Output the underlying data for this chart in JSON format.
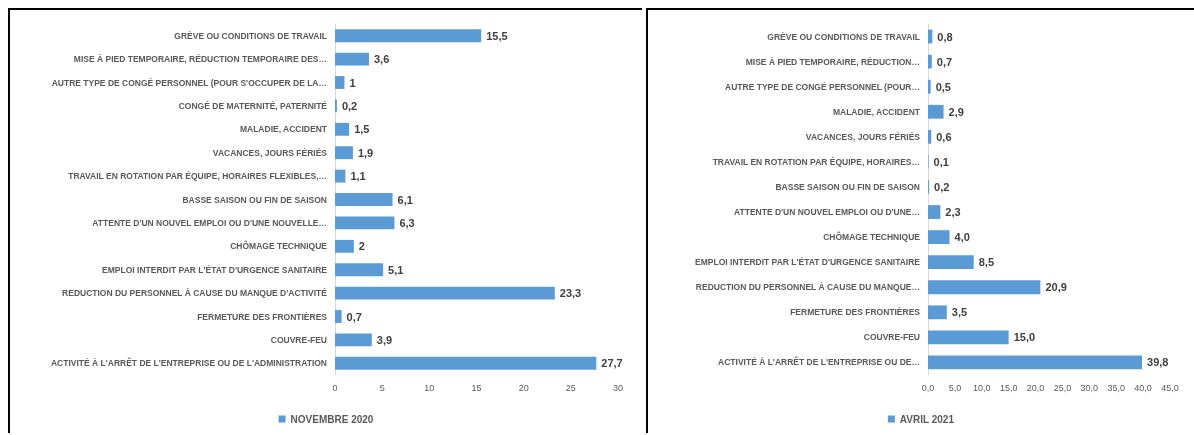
{
  "chart_data": [
    {
      "type": "bar",
      "orientation": "horizontal",
      "categories": [
        "GRÈVE OU CONDITIONS DE TRAVAIL",
        "MISE À PIED TEMPORAIRE, RÉDUCTION TEMPORAIRE DES…",
        "AUTRE TYPE DE CONGÉ PERSONNEL (POUR S'OCCUPER DE LA…",
        "CONGÉ DE MATERNITÉ, PATERNITÉ",
        "MALADIE, ACCIDENT",
        "VACANCES, JOURS FÉRIÉS",
        "TRAVAIL EN ROTATION PAR ÉQUIPE, HORAIRES FLEXIBLES,…",
        "BASSE SAISON OU FIN DE SAISON",
        "ATTENTE D'UN NOUVEL EMPLOI OU D'UNE NOUVELLE…",
        "CHÔMAGE TECHNIQUE",
        "EMPLOI INTERDIT PAR L'ÉTAT D'URGENCE SANITAIRE",
        "REDUCTION DU PERSONNEL À CAUSE DU MANQUE D'ACTIVITÉ",
        "FERMETURE DES FRONTIÈRES",
        "COUVRE-FEU",
        "ACTIVITÉ À L'ARRÊT DE L'ENTREPRISE OU DE L'ADMINISTRATION"
      ],
      "series": [
        {
          "name": "NOVEMBRE 2020",
          "color": "#5b9bd5",
          "values": [
            15.5,
            3.6,
            1,
            0.2,
            1.5,
            1.9,
            1.1,
            6.1,
            6.3,
            2,
            5.1,
            23.3,
            0.7,
            3.9,
            27.7
          ],
          "value_labels": [
            "15,5",
            "3,6",
            "1",
            "0,2",
            "1,5",
            "1,9",
            "1,1",
            "6,1",
            "6,3",
            "2",
            "5,1",
            "23,3",
            "0,7",
            "3,9",
            "27,7"
          ]
        }
      ],
      "xlim": [
        0,
        30
      ],
      "xticks": [
        0,
        5,
        10,
        15,
        20,
        25,
        30
      ],
      "legend": "bottom",
      "grid": false
    },
    {
      "type": "bar",
      "orientation": "horizontal",
      "categories": [
        "GRÈVE OU CONDITIONS DE TRAVAIL",
        "MISE À PIED TEMPORAIRE, RÉDUCTION…",
        "AUTRE TYPE DE CONGÉ PERSONNEL (POUR…",
        "MALADIE, ACCIDENT",
        "VACANCES, JOURS FÉRIÉS",
        "TRAVAIL EN ROTATION PAR ÉQUIPE, HORAIRES…",
        "BASSE SAISON OU FIN DE SAISON",
        "ATTENTE D'UN NOUVEL EMPLOI OU D'UNE…",
        "CHÔMAGE TECHNIQUE",
        "EMPLOI INTERDIT PAR L'ÉTAT D'URGENCE SANITAIRE",
        "REDUCTION DU PERSONNEL À CAUSE DU MANQUE…",
        "FERMETURE DES FRONTIÈRES",
        "COUVRE-FEU",
        "ACTIVITÉ À L'ARRÊT DE L'ENTREPRISE OU DE…"
      ],
      "series": [
        {
          "name": "AVRIL 2021",
          "color": "#5b9bd5",
          "values": [
            0.8,
            0.7,
            0.5,
            2.9,
            0.6,
            0.1,
            0.2,
            2.3,
            4.0,
            8.5,
            20.9,
            3.5,
            15.0,
            39.8
          ],
          "value_labels": [
            "0,8",
            "0,7",
            "0,5",
            "2,9",
            "0,6",
            "0,1",
            "0,2",
            "2,3",
            "4,0",
            "8,5",
            "20,9",
            "3,5",
            "15,0",
            "39,8"
          ]
        }
      ],
      "xlim": [
        0,
        45
      ],
      "xticks": [
        {
          "value": 0,
          "label": "0,0"
        },
        {
          "value": 5,
          "label": "5,0"
        },
        {
          "value": 10,
          "label": "10,0"
        },
        {
          "value": 15,
          "label": "15,0"
        },
        {
          "value": 20,
          "label": "20,0"
        },
        {
          "value": 25,
          "label": "25,0"
        },
        {
          "value": 30,
          "label": "30,0"
        },
        {
          "value": 35,
          "label": "35,0"
        },
        {
          "value": 40,
          "label": "40,0"
        },
        {
          "value": 45,
          "label": "45,0"
        }
      ],
      "legend": "bottom",
      "grid": false
    }
  ]
}
